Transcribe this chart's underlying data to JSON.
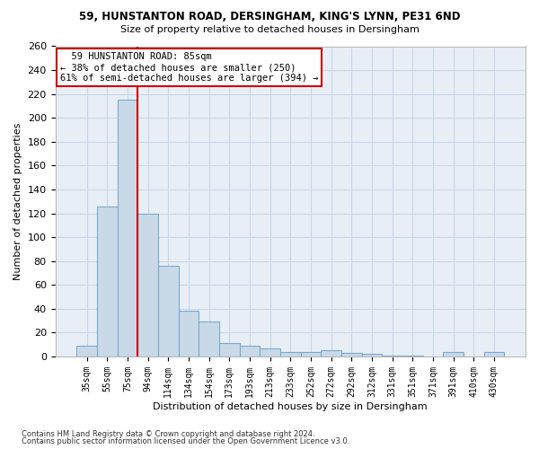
{
  "title1": "59, HUNSTANTON ROAD, DERSINGHAM, KING'S LYNN, PE31 6ND",
  "title2": "Size of property relative to detached houses in Dersingham",
  "xlabel": "Distribution of detached houses by size in Dersingham",
  "ylabel": "Number of detached properties",
  "footer1": "Contains HM Land Registry data © Crown copyright and database right 2024.",
  "footer2": "Contains public sector information licensed under the Open Government Licence v3.0.",
  "annotation_line1": "  59 HUNSTANTON ROAD: 85sqm  ",
  "annotation_line2": "← 38% of detached houses are smaller (250)",
  "annotation_line3": "61% of semi-detached houses are larger (394) →",
  "bar_color": "#c9d9e8",
  "bar_edge_color": "#7aaac8",
  "red_line_color": "#cc0000",
  "annotation_box_color": "#ffffff",
  "annotation_box_edge": "#cc0000",
  "grid_color": "#c8d8e8",
  "background_color": "#e8eef5",
  "categories": [
    "35sqm",
    "55sqm",
    "75sqm",
    "94sqm",
    "114sqm",
    "134sqm",
    "154sqm",
    "173sqm",
    "193sqm",
    "213sqm",
    "233sqm",
    "252sqm",
    "272sqm",
    "292sqm",
    "312sqm",
    "331sqm",
    "351sqm",
    "371sqm",
    "391sqm",
    "410sqm",
    "430sqm"
  ],
  "values": [
    9,
    126,
    215,
    120,
    76,
    38,
    29,
    11,
    9,
    7,
    4,
    4,
    5,
    3,
    2,
    1,
    1,
    0,
    4,
    0,
    4
  ],
  "red_line_x": 2.5,
  "ylim": [
    0,
    260
  ],
  "yticks": [
    0,
    20,
    40,
    60,
    80,
    100,
    120,
    140,
    160,
    180,
    200,
    220,
    240,
    260
  ]
}
